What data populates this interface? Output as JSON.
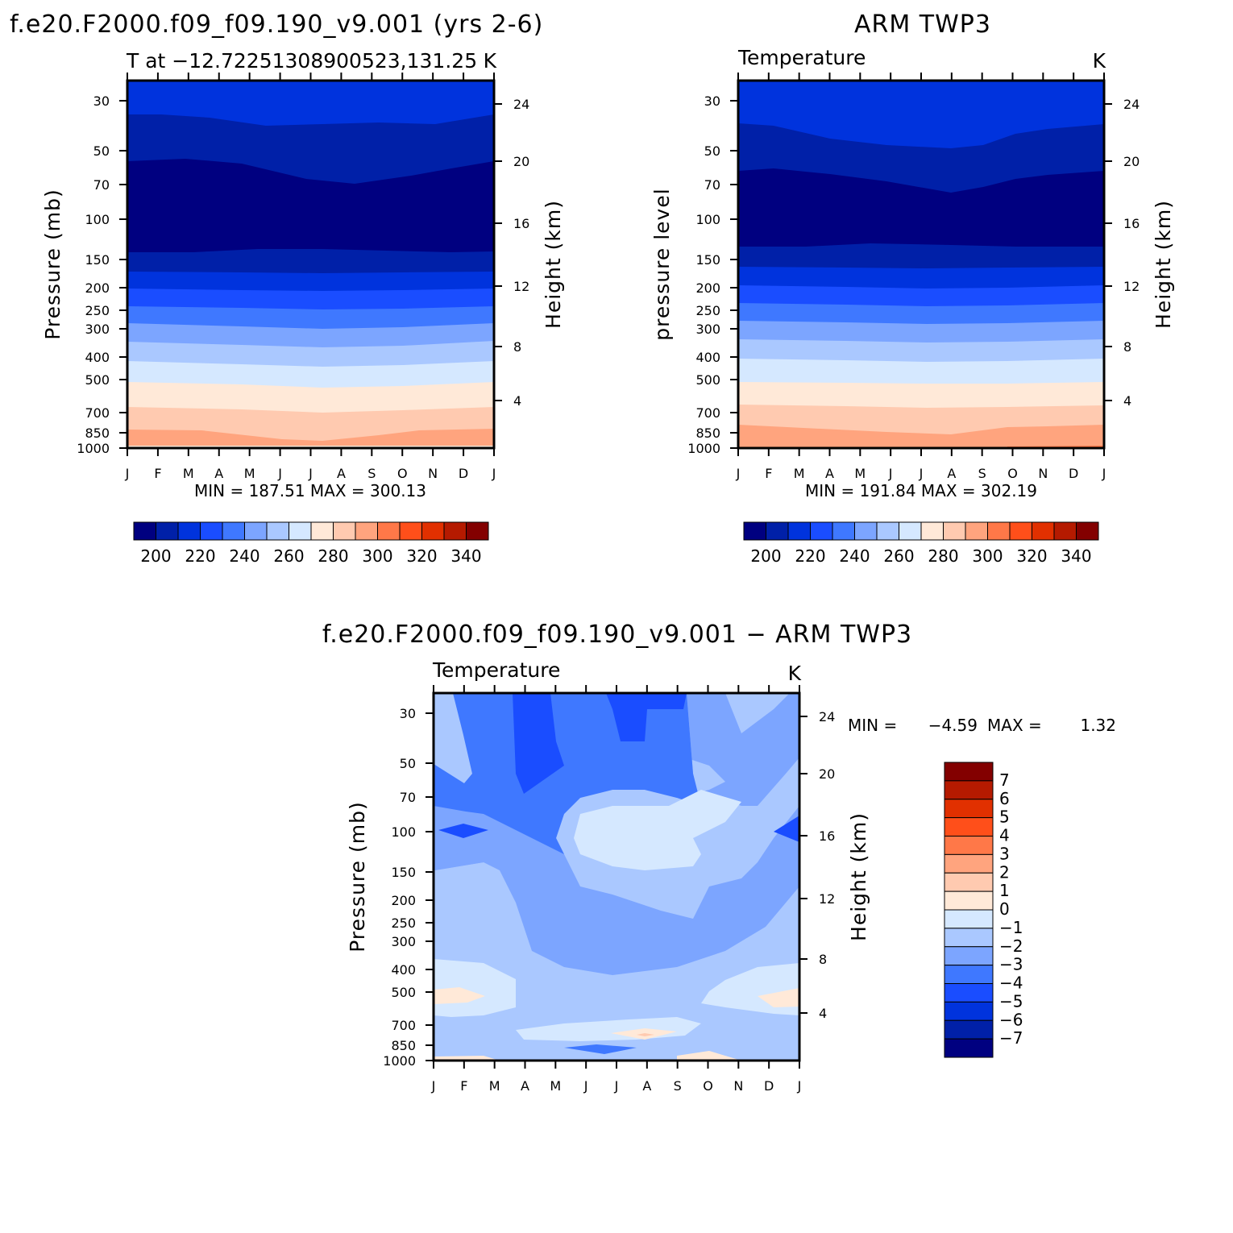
{
  "chart_data": [
    {
      "type": "heatmap",
      "title": "f.e20.F2000.f09_f09.190_v9.001 (yrs 2-6)",
      "subtitle": "T at −12.72251308900523,131.25",
      "units": "K",
      "x_ticks": [
        "J",
        "F",
        "M",
        "A",
        "M",
        "J",
        "J",
        "A",
        "S",
        "O",
        "N",
        "D",
        "J"
      ],
      "ylabel": "Pressure (mb)",
      "y_ticks": [
        "30",
        "50",
        "70",
        "100",
        "150",
        "200",
        "250",
        "300",
        "400",
        "500",
        "700",
        "850",
        "1000"
      ],
      "y2label": "Height (km)",
      "y2_ticks": [
        "24",
        "20",
        "16",
        "12",
        "8",
        "4"
      ],
      "stats": "MIN = 187.51 MAX = 300.13",
      "min": 187.51,
      "max": 300.13,
      "colorbar_labels": [
        "200",
        "220",
        "240",
        "260",
        "280",
        "300",
        "320",
        "340"
      ],
      "levels": [
        200,
        210,
        220,
        230,
        240,
        250,
        260,
        270,
        280,
        290,
        300,
        310,
        320,
        330,
        340
      ],
      "colors": [
        "#000080",
        "#0020a8",
        "#0033dd",
        "#1a4dff",
        "#3f78ff",
        "#7ca5ff",
        "#aac8ff",
        "#d5e8ff",
        "#ffe9d8",
        "#ffcab0",
        "#ffa47e",
        "#ff7848",
        "#ff4f1a",
        "#e13000",
        "#b51a00",
        "#830000"
      ]
    },
    {
      "type": "heatmap",
      "title": "ARM TWP3",
      "subtitle": "Temperature",
      "units": "K",
      "x_ticks": [
        "J",
        "F",
        "M",
        "A",
        "M",
        "J",
        "J",
        "A",
        "S",
        "O",
        "N",
        "D",
        "J"
      ],
      "ylabel": "pressure level",
      "y_ticks": [
        "30",
        "50",
        "70",
        "100",
        "150",
        "200",
        "250",
        "300",
        "400",
        "500",
        "700",
        "850",
        "1000"
      ],
      "y2label": "Height (km)",
      "y2_ticks": [
        "24",
        "20",
        "16",
        "12",
        "8",
        "4"
      ],
      "stats": "MIN = 191.84 MAX = 302.19",
      "min": 191.84,
      "max": 302.19,
      "colorbar_labels": [
        "200",
        "220",
        "240",
        "260",
        "280",
        "300",
        "320",
        "340"
      ]
    },
    {
      "type": "heatmap",
      "title": "f.e20.F2000.f09_f09.190_v9.001 − ARM TWP3",
      "subtitle": "Temperature",
      "units": "K",
      "x_ticks": [
        "J",
        "F",
        "M",
        "A",
        "M",
        "J",
        "J",
        "A",
        "S",
        "O",
        "N",
        "D",
        "J"
      ],
      "ylabel": "Pressure (mb)",
      "y_ticks": [
        "30",
        "50",
        "70",
        "100",
        "150",
        "200",
        "250",
        "300",
        "400",
        "500",
        "700",
        "850",
        "1000"
      ],
      "y2label": "Height (km)",
      "y2_ticks": [
        "24",
        "20",
        "16",
        "12",
        "8",
        "4"
      ],
      "stats_min_label": "MIN =",
      "stats_min": "−4.59",
      "stats_max_label": "MAX =",
      "stats_max": "1.32",
      "min": -4.59,
      "max": 1.32,
      "colorbar_labels": [
        "7",
        "6",
        "5",
        "4",
        "3",
        "2",
        "1",
        "0",
        "−1",
        "−2",
        "−3",
        "−4",
        "−5",
        "−6",
        "−7"
      ],
      "colors_top_to_bottom": [
        "#830000",
        "#b51a00",
        "#e13000",
        "#ff4f1a",
        "#ff7848",
        "#ffa47e",
        "#ffcab0",
        "#ffe9d8",
        "#d5e8ff",
        "#aac8ff",
        "#7ca5ff",
        "#3f78ff",
        "#1a4dff",
        "#0033dd",
        "#0020a8",
        "#000080"
      ]
    }
  ]
}
